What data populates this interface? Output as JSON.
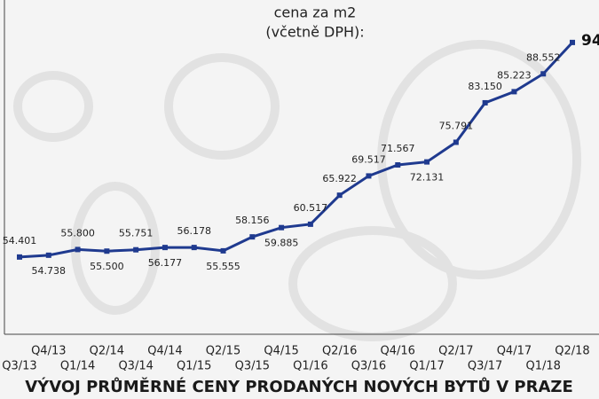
{
  "chart_data": {
    "type": "line",
    "subtitle": [
      "cena za m2",
      "(včetně DPH):"
    ],
    "title": "VÝVOJ PRŮMĚRNÉ CENY PRODANÝCH NOVÝCH BYTŮ V PRAZE",
    "categories": [
      "Q3/13",
      "Q4/13",
      "Q1/14",
      "Q2/14",
      "Q3/14",
      "Q4/14",
      "Q1/15",
      "Q2/15",
      "Q3/15",
      "Q4/15",
      "Q1/16",
      "Q2/16",
      "Q3/16",
      "Q4/16",
      "Q1/17",
      "Q2/17",
      "Q3/17",
      "Q4/17",
      "Q1/18",
      "Q2/18"
    ],
    "series": [
      {
        "color": "#1f3a8f",
        "values": [
          54.401,
          54.738,
          55.8,
          55.5,
          55.751,
          56.177,
          56.178,
          55.555,
          58.156,
          59.885,
          60.517,
          65.922,
          69.517,
          71.567,
          72.131,
          75.791,
          83.15,
          85.223,
          88.552,
          94.4
        ],
        "value_labels": [
          "54.401",
          "54.738",
          "55.800",
          "55.500",
          "55.751",
          "56.177",
          "56.178",
          "55.555",
          "58.156",
          "59.885",
          "60.517",
          "65.922",
          "69.517",
          "71.567",
          "72.131",
          "75.791",
          "83.150",
          "85.223",
          "88.552",
          "94"
        ]
      }
    ],
    "ylim": [
      40,
      100
    ]
  }
}
